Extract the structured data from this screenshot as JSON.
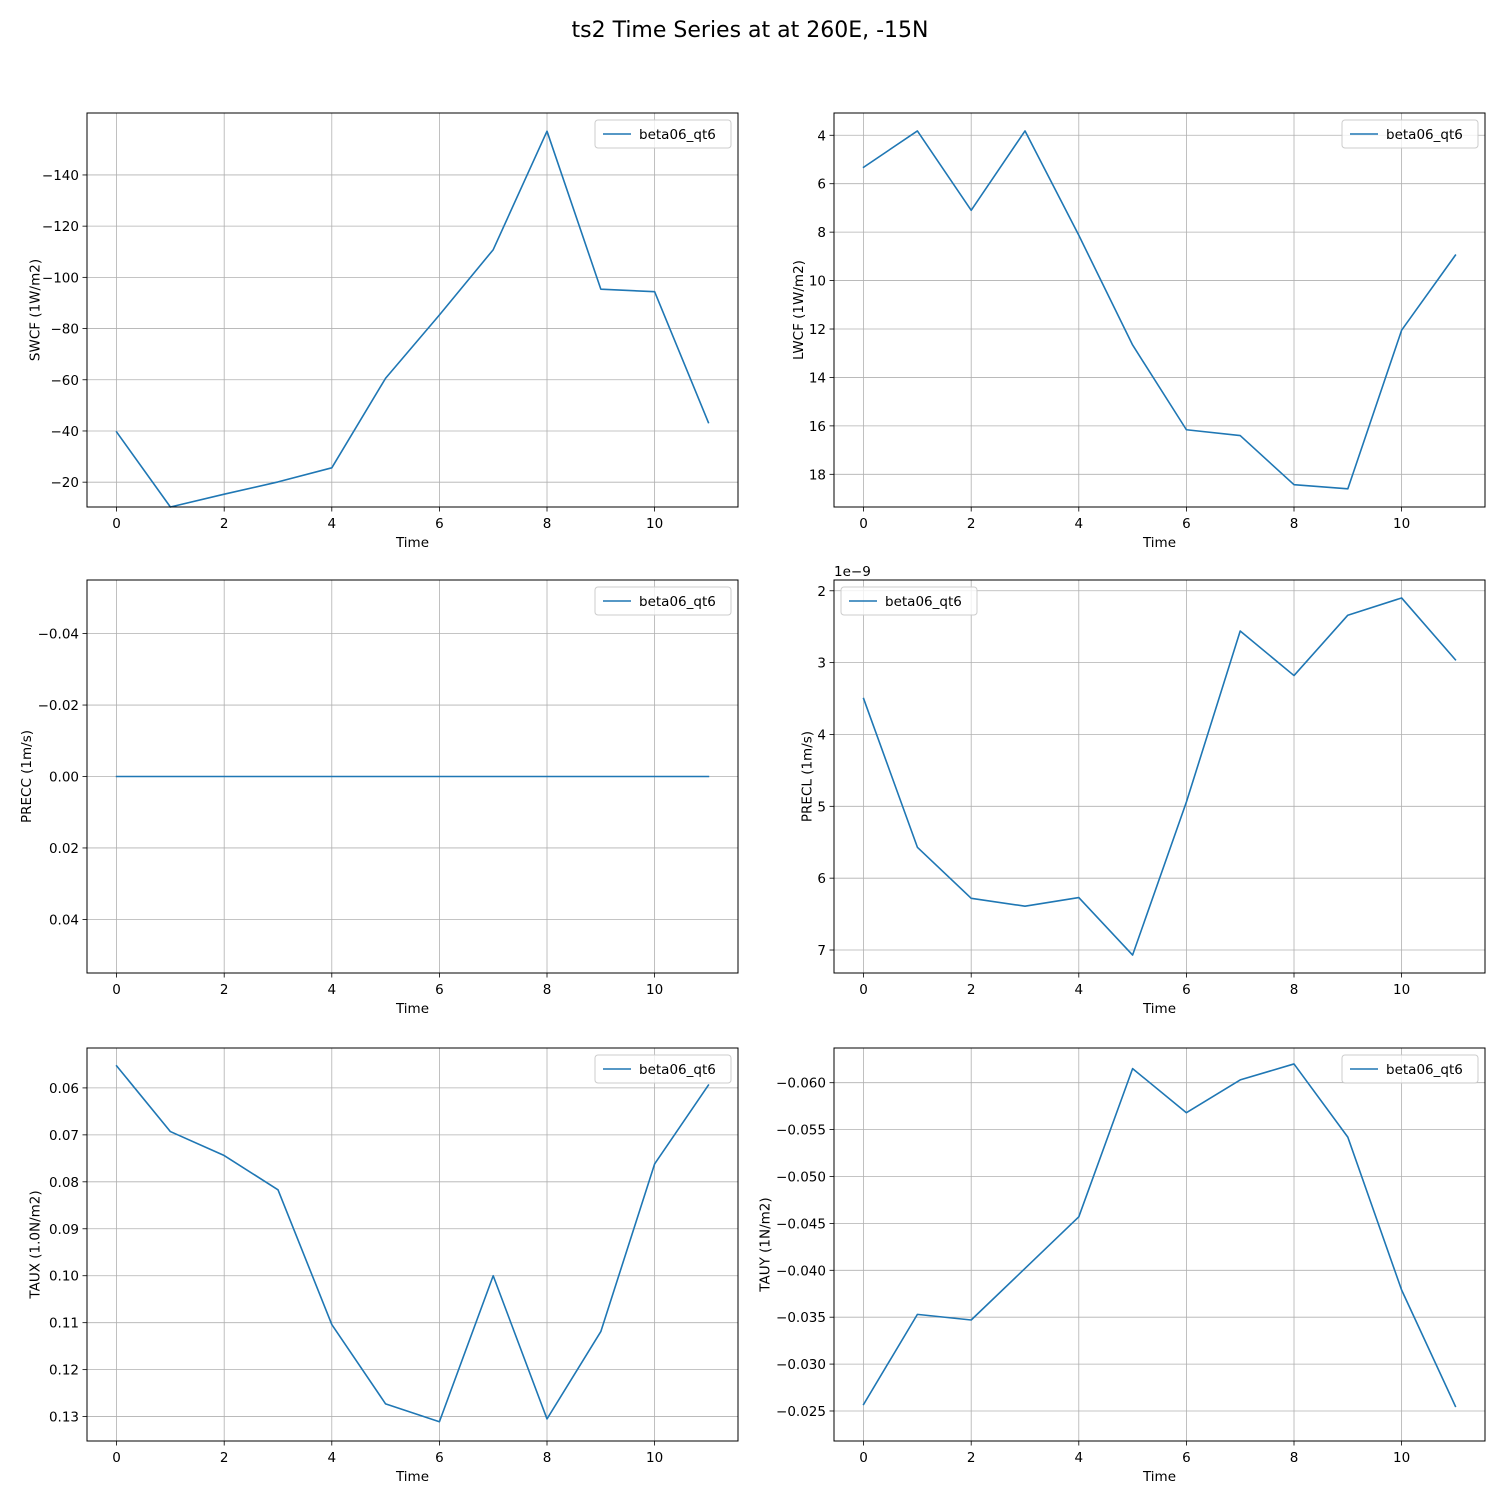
{
  "figure": {
    "title": "ts2 Time Series at at 260E, -15N"
  },
  "chart_data": [
    {
      "type": "line",
      "xlabel": "Time",
      "ylabel": "SWCF (1W/m2)",
      "x": [
        0,
        1,
        2,
        3,
        4,
        5,
        6,
        7,
        8,
        9,
        10,
        11
      ],
      "xlim": [
        -0.55,
        11.55
      ],
      "xticks": [
        0,
        2,
        4,
        6,
        8,
        10
      ],
      "xtick_labels": [
        "0",
        "2",
        "4",
        "6",
        "8",
        "10"
      ],
      "ylim": [
        -10.3,
        -164.2
      ],
      "yticks": [
        -20,
        -40,
        -60,
        -80,
        -100,
        -120,
        -140
      ],
      "ytick_labels": [
        "−20",
        "−40",
        "−60",
        "−80",
        "−100",
        "−120",
        "−140"
      ],
      "y_inverted": true,
      "offset_text": "",
      "grid": true,
      "legend_position": "upper right",
      "series": [
        {
          "name": "beta06_qt6",
          "color": "#1f77b4",
          "values": [
            -39.6,
            -10.3,
            -15.3,
            -20.1,
            -25.6,
            -60.6,
            -85.3,
            -110.8,
            -157.1,
            -95.4,
            -94.4,
            -43.3
          ]
        }
      ]
    },
    {
      "type": "line",
      "xlabel": "Time",
      "ylabel": "LWCF (1W/m2)",
      "x": [
        0,
        1,
        2,
        3,
        4,
        5,
        6,
        7,
        8,
        9,
        10,
        11
      ],
      "xlim": [
        -0.55,
        11.55
      ],
      "xticks": [
        0,
        2,
        4,
        6,
        8,
        10
      ],
      "xtick_labels": [
        "0",
        "2",
        "4",
        "6",
        "8",
        "10"
      ],
      "ylim": [
        19.35,
        3.08
      ],
      "yticks": [
        4,
        6,
        8,
        10,
        12,
        14,
        16,
        18
      ],
      "ytick_labels": [
        "4",
        "6",
        "8",
        "10",
        "12",
        "14",
        "16",
        "18"
      ],
      "y_inverted": true,
      "offset_text": "",
      "grid": true,
      "legend_position": "upper right",
      "series": [
        {
          "name": "beta06_qt6",
          "color": "#1f77b4",
          "values": [
            5.32,
            3.82,
            7.1,
            3.82,
            8.13,
            12.66,
            16.16,
            16.4,
            18.43,
            18.6,
            12.05,
            8.95
          ]
        }
      ]
    },
    {
      "type": "line",
      "xlabel": "Time",
      "ylabel": "PRECC (1m/s)",
      "x": [
        0,
        1,
        2,
        3,
        4,
        5,
        6,
        7,
        8,
        9,
        10,
        11
      ],
      "xlim": [
        -0.55,
        11.55
      ],
      "xticks": [
        0,
        2,
        4,
        6,
        8,
        10
      ],
      "xtick_labels": [
        "0",
        "2",
        "4",
        "6",
        "8",
        "10"
      ],
      "ylim": [
        0.055,
        -0.055
      ],
      "yticks": [
        -0.04,
        -0.02,
        0.0,
        0.02,
        0.04
      ],
      "ytick_labels": [
        "−0.04",
        "−0.02",
        "0.00",
        "0.02",
        "0.04"
      ],
      "y_inverted": true,
      "offset_text": "",
      "grid": true,
      "legend_position": "upper right",
      "series": [
        {
          "name": "beta06_qt6",
          "color": "#1f77b4",
          "values": [
            0,
            0,
            0,
            0,
            0,
            0,
            0,
            0,
            0,
            0,
            0,
            0
          ]
        }
      ]
    },
    {
      "type": "line",
      "xlabel": "Time",
      "ylabel": "PRECL (1m/s)",
      "x": [
        0,
        1,
        2,
        3,
        4,
        5,
        6,
        7,
        8,
        9,
        10,
        11
      ],
      "xlim": [
        -0.55,
        11.55
      ],
      "xticks": [
        0,
        2,
        4,
        6,
        8,
        10
      ],
      "xtick_labels": [
        "0",
        "2",
        "4",
        "6",
        "8",
        "10"
      ],
      "ylim": [
        7.32e-09,
        1.85e-09
      ],
      "yticks": [
        2e-09,
        3e-09,
        4e-09,
        5e-09,
        6e-09,
        7e-09
      ],
      "ytick_labels": [
        "2",
        "3",
        "4",
        "5",
        "6",
        "7"
      ],
      "y_inverted": true,
      "offset_text": "1e−9",
      "grid": true,
      "legend_position": "upper left",
      "series": [
        {
          "name": "beta06_qt6",
          "color": "#1f77b4",
          "values": [
            3.5e-09,
            5.57e-09,
            6.28e-09,
            6.39e-09,
            6.27e-09,
            7.07e-09,
            4.94e-09,
            2.56e-09,
            3.18e-09,
            2.34e-09,
            2.1e-09,
            2.96e-09
          ]
        }
      ]
    },
    {
      "type": "line",
      "xlabel": "Time",
      "ylabel": "TAUX (1.0N/m2)",
      "x": [
        0,
        1,
        2,
        3,
        4,
        5,
        6,
        7,
        8,
        9,
        10,
        11
      ],
      "xlim": [
        -0.55,
        11.55
      ],
      "xticks": [
        0,
        2,
        4,
        6,
        8,
        10
      ],
      "xtick_labels": [
        "0",
        "2",
        "4",
        "6",
        "8",
        "10"
      ],
      "ylim": [
        0.1352,
        0.0515
      ],
      "yticks": [
        0.06,
        0.07,
        0.08,
        0.09,
        0.1,
        0.11,
        0.12,
        0.13
      ],
      "ytick_labels": [
        "0.06",
        "0.07",
        "0.08",
        "0.09",
        "0.10",
        "0.11",
        "0.12",
        "0.13"
      ],
      "y_inverted": true,
      "offset_text": "",
      "grid": true,
      "legend_position": "upper right",
      "series": [
        {
          "name": "beta06_qt6",
          "color": "#1f77b4",
          "values": [
            0.0553,
            0.0693,
            0.0744,
            0.0817,
            0.1104,
            0.1273,
            0.1311,
            0.1,
            0.1305,
            0.1119,
            0.0762,
            0.0594
          ]
        }
      ]
    },
    {
      "type": "line",
      "xlabel": "Time",
      "ylabel": "TAUY (1N/m2)",
      "x": [
        0,
        1,
        2,
        3,
        4,
        5,
        6,
        7,
        8,
        9,
        10,
        11
      ],
      "xlim": [
        -0.55,
        11.55
      ],
      "xticks": [
        0,
        2,
        4,
        6,
        8,
        10
      ],
      "xtick_labels": [
        "0",
        "2",
        "4",
        "6",
        "8",
        "10"
      ],
      "ylim": [
        -0.0218,
        -0.0637
      ],
      "yticks": [
        -0.025,
        -0.03,
        -0.035,
        -0.04,
        -0.045,
        -0.05,
        -0.055,
        -0.06
      ],
      "ytick_labels": [
        "−0.025",
        "−0.030",
        "−0.035",
        "−0.040",
        "−0.045",
        "−0.050",
        "−0.055",
        "−0.060"
      ],
      "y_inverted": true,
      "offset_text": "",
      "grid": true,
      "legend_position": "upper right",
      "series": [
        {
          "name": "beta06_qt6",
          "color": "#1f77b4",
          "values": [
            -0.0257,
            -0.0353,
            -0.0347,
            -0.0402,
            -0.0457,
            -0.0615,
            -0.0568,
            -0.0603,
            -0.062,
            -0.0542,
            -0.0379,
            -0.0255
          ]
        }
      ]
    }
  ]
}
